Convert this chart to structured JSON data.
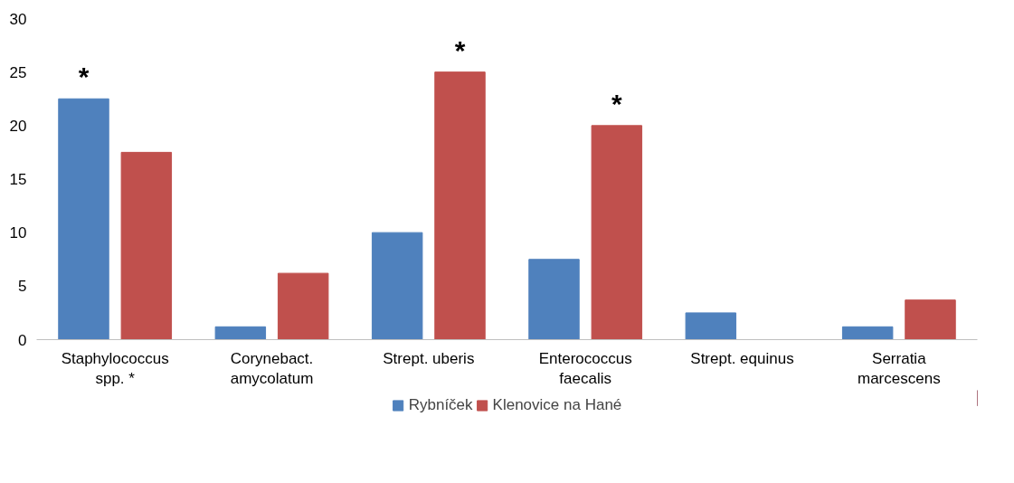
{
  "chart_data": {
    "type": "bar",
    "categories": [
      "Staphylococcus\nspp. *",
      "Corynebact.\namycolatum",
      "Strept. uberis",
      "Enterococcus\nfaecalis",
      "Strept. equinus",
      "Serratia\nmarcescens"
    ],
    "series": [
      {
        "name": "Rybníček",
        "color": "#4f81bd",
        "values": [
          22.5,
          1.2,
          10,
          7.5,
          2.5,
          1.2
        ]
      },
      {
        "name": "Klenovice na Hané",
        "color": "#c0504d",
        "values": [
          17.5,
          6.2,
          25,
          20,
          0,
          3.7
        ]
      }
    ],
    "ylim": [
      0,
      30
    ],
    "yticks": [
      0,
      5,
      10,
      15,
      20,
      25,
      30
    ],
    "grid": false,
    "legend": "bottom",
    "annotations": [
      "*",
      "*",
      "*"
    ]
  }
}
